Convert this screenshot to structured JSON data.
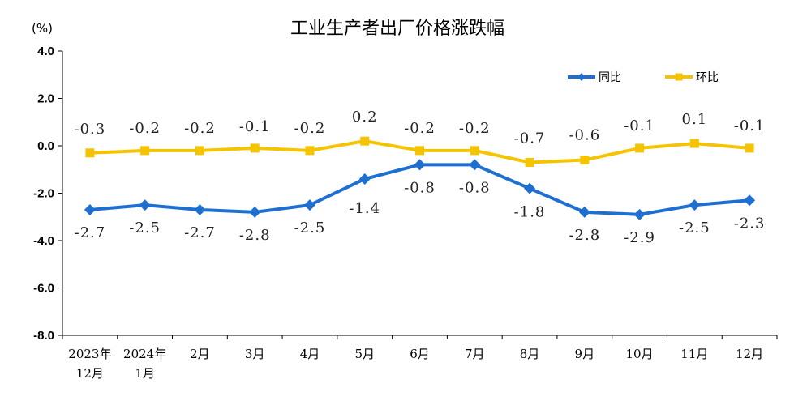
{
  "chart_data": {
    "type": "line",
    "title": "工业生产者出厂价格涨跌幅",
    "unit": "(%)",
    "categories": [
      [
        "2023年",
        "12月"
      ],
      [
        "2024年",
        "1月"
      ],
      [
        "2月"
      ],
      [
        "3月"
      ],
      [
        "4月"
      ],
      [
        "5月"
      ],
      [
        "6月"
      ],
      [
        "7月"
      ],
      [
        "8月"
      ],
      [
        "9月"
      ],
      [
        "10月"
      ],
      [
        "11月"
      ],
      [
        "12月"
      ]
    ],
    "ylim": [
      -8.0,
      4.0
    ],
    "yticks": [
      "4.0",
      "2.0",
      "0.0",
      "-2.0",
      "-4.0",
      "-6.0",
      "-8.0"
    ],
    "grid": false,
    "legend_position": "top-right",
    "series": [
      {
        "name": "同比",
        "color": "#1F6FD1",
        "marker": "diamond",
        "values": [
          -2.7,
          -2.5,
          -2.7,
          -2.8,
          -2.5,
          -1.4,
          -0.8,
          -0.8,
          -1.8,
          -2.8,
          -2.9,
          -2.5,
          -2.3
        ],
        "labels": [
          "-2.7",
          "-2.5",
          "-2.7",
          "-2.8",
          "-2.5",
          "-1.4",
          "-0.8",
          "-0.8",
          "-1.8",
          "-2.8",
          "-2.9",
          "-2.5",
          "-2.3"
        ]
      },
      {
        "name": "环比",
        "color": "#F5C400",
        "marker": "square",
        "values": [
          -0.3,
          -0.2,
          -0.2,
          -0.1,
          -0.2,
          0.2,
          -0.2,
          -0.2,
          -0.7,
          -0.6,
          -0.1,
          0.1,
          -0.1
        ],
        "labels": [
          "-0.3",
          "-0.2",
          "-0.2",
          "-0.1",
          "-0.2",
          "0.2",
          "-0.2",
          "-0.2",
          "-0.7",
          "-0.6",
          "-0.1",
          "0.1",
          "-0.1"
        ]
      }
    ]
  }
}
